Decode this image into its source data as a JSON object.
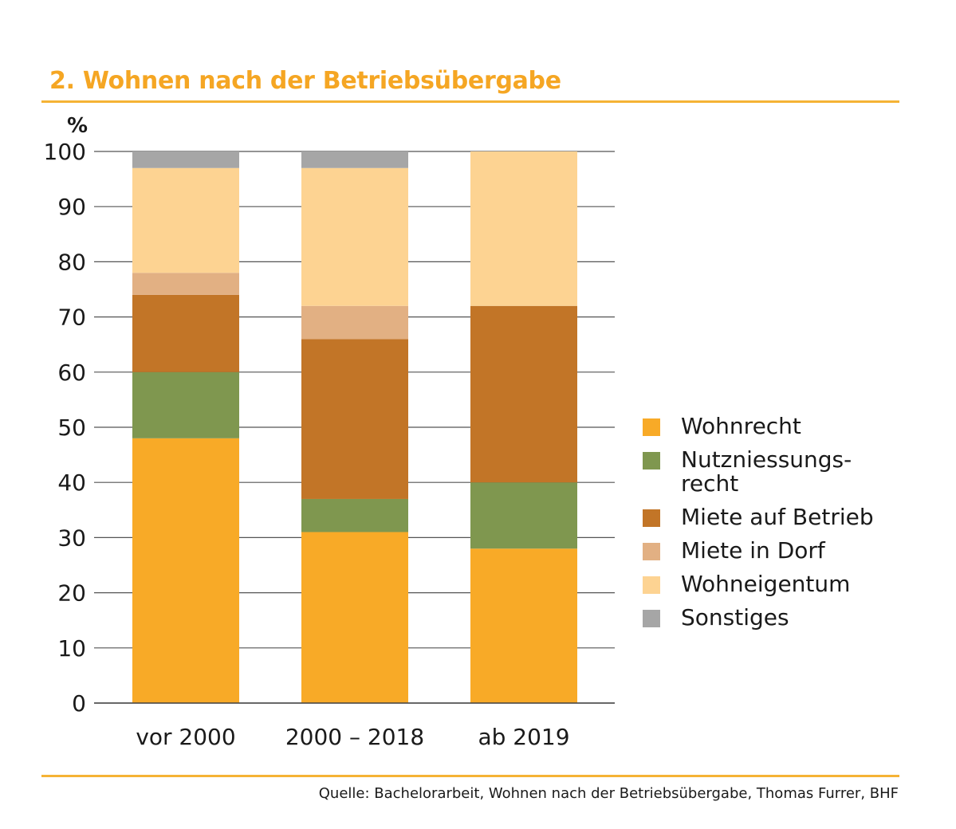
{
  "header": {
    "title": "2. Wohnen nach der Betriebsübergabe"
  },
  "footer": {
    "source": "Quelle: Bachelorarbeit, Wohnen nach der Betriebsübergabe, Thomas Furrer, BHF"
  },
  "chart_data": {
    "type": "bar",
    "stacked": true,
    "title": "2. Wohnen nach der Betriebsübergabe",
    "xlabel": "",
    "ylabel": "%",
    "ylim": [
      0,
      100
    ],
    "yticks": [
      0,
      10,
      20,
      30,
      40,
      50,
      60,
      70,
      80,
      90,
      100
    ],
    "grid": true,
    "legend_position": "right",
    "categories": [
      "vor 2000",
      "2000 – 2018",
      "ab 2019"
    ],
    "series": [
      {
        "name": "Wohnrecht",
        "color": "#f8aa27",
        "values": [
          48,
          31,
          28
        ]
      },
      {
        "name": "Nutzniessungs-\nrecht",
        "color": "#7f974f",
        "values": [
          12,
          6,
          12
        ]
      },
      {
        "name": "Miete auf Betrieb",
        "color": "#c27527",
        "values": [
          14,
          29,
          32
        ]
      },
      {
        "name": "Miete in Dorf",
        "color": "#e2b083",
        "values": [
          4,
          6,
          0
        ]
      },
      {
        "name": "Wohneigentum",
        "color": "#fdd392",
        "values": [
          19,
          25,
          28
        ]
      },
      {
        "name": "Sonstiges",
        "color": "#a6a6a6",
        "values": [
          3,
          3,
          0
        ]
      }
    ]
  }
}
